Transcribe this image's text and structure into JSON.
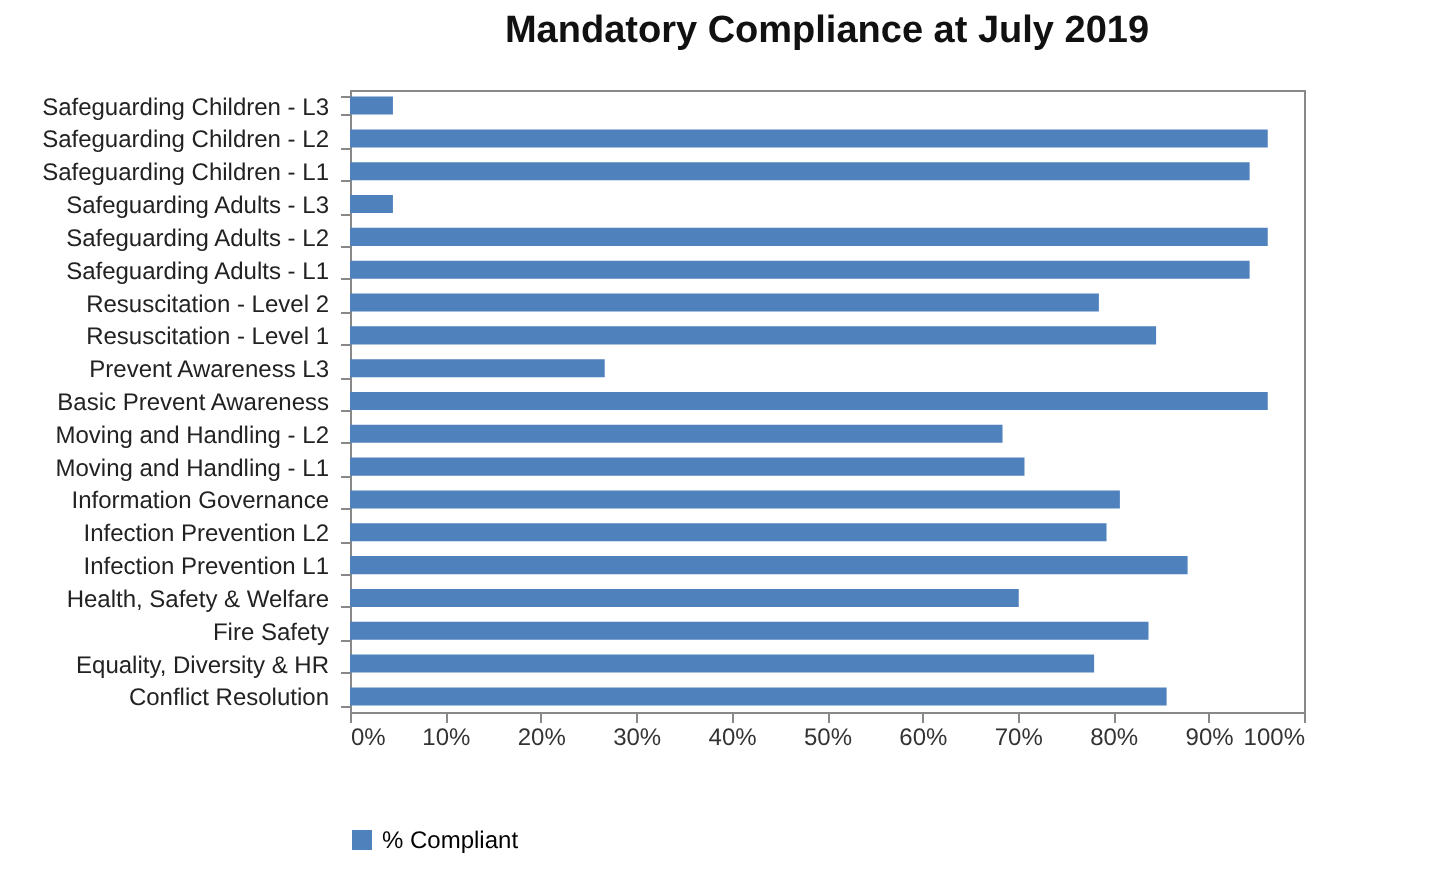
{
  "chart_data": {
    "type": "bar",
    "orientation": "horizontal",
    "title": "Mandatory Compliance at July 2019",
    "categories": [
      "Safeguarding Children - L3",
      "Safeguarding Children - L2",
      "Safeguarding Children - L1",
      "Safeguarding Adults - L3",
      "Safeguarding Adults - L2",
      "Safeguarding Adults - L1",
      "Resuscitation - Level 2",
      "Resuscitation - Level 1",
      "Prevent Awareness L3",
      "Basic Prevent Awareness",
      "Moving and Handling - L2",
      "Moving and Handling - L1",
      "Information Governance",
      "Infection Prevention L2",
      "Infection Prevention L1",
      "Health, Safety & Welfare",
      "Fire Safety",
      "Equality, Diversity & HR",
      "Conflict Resolution"
    ],
    "series": [
      {
        "name": "% Compliant",
        "color": "#4f81bd",
        "values": [
          4.5,
          96.2,
          94.3,
          4.5,
          96.2,
          94.3,
          78.5,
          84.5,
          26.7,
          96.2,
          68.4,
          70.7,
          80.7,
          79.3,
          87.8,
          70.1,
          83.7,
          78.0,
          85.6
        ]
      }
    ],
    "xlim": [
      0,
      100
    ],
    "xticks": [
      {
        "value": 0,
        "label": "0%"
      },
      {
        "value": 10,
        "label": "10%"
      },
      {
        "value": 20,
        "label": "20%"
      },
      {
        "value": 30,
        "label": "30%"
      },
      {
        "value": 40,
        "label": "40%"
      },
      {
        "value": 50,
        "label": "50%"
      },
      {
        "value": 60,
        "label": "60%"
      },
      {
        "value": 70,
        "label": "70%"
      },
      {
        "value": 80,
        "label": "80%"
      },
      {
        "value": 90,
        "label": "90%"
      },
      {
        "value": 100,
        "label": "100%"
      }
    ],
    "legend": "bottom"
  }
}
